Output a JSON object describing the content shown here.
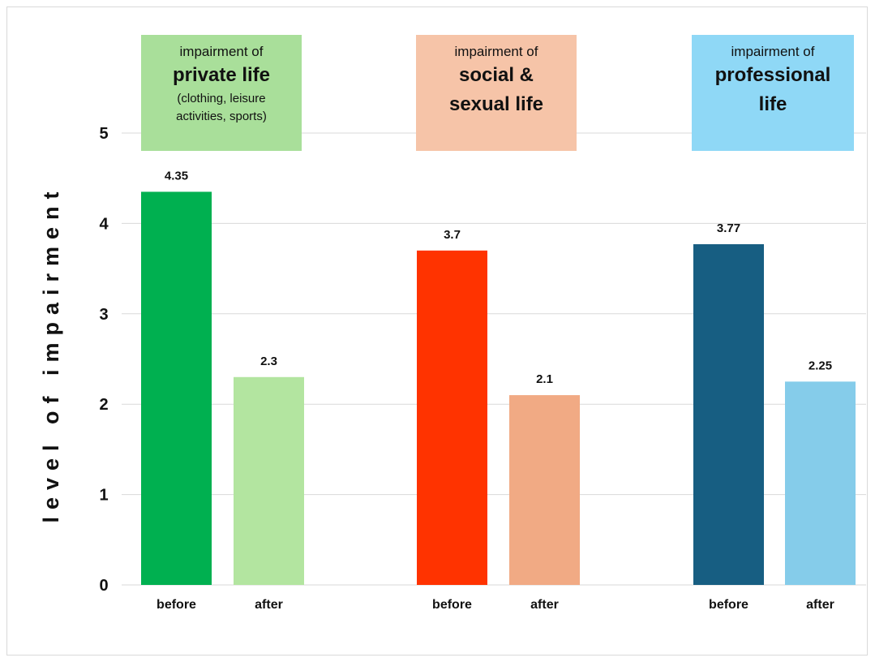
{
  "chart_data": {
    "type": "bar",
    "ylabel": "level of impairment",
    "xlabel": "",
    "ylim": [
      0,
      5
    ],
    "yticks": [
      0,
      1,
      2,
      3,
      4,
      5
    ],
    "grid": true,
    "groups": [
      {
        "header_prefix": "impairment of",
        "header_title": "private life",
        "header_note": "(clothing, leisure activities, sports)",
        "header_color": "#A9DF9A",
        "bars": [
          {
            "label": "before",
            "value": 4.35,
            "value_label": "4.35",
            "color": "#00B050"
          },
          {
            "label": "after",
            "value": 2.3,
            "value_label": "2.3",
            "color": "#B3E5A0"
          }
        ]
      },
      {
        "header_prefix": "impairment of",
        "header_title": "social & sexual life",
        "header_note": "",
        "header_color": "#F6C4A8",
        "bars": [
          {
            "label": "before",
            "value": 3.7,
            "value_label": "3.7",
            "color": "#FF3300"
          },
          {
            "label": "after",
            "value": 2.1,
            "value_label": "2.1",
            "color": "#F1AA84"
          }
        ]
      },
      {
        "header_prefix": "impairment of",
        "header_title": "professional life",
        "header_note": "",
        "header_color": "#8FD8F6",
        "bars": [
          {
            "label": "before",
            "value": 3.77,
            "value_label": "3.77",
            "color": "#175E82"
          },
          {
            "label": "after",
            "value": 2.25,
            "value_label": "2.25",
            "color": "#85CCEA"
          }
        ]
      }
    ]
  }
}
